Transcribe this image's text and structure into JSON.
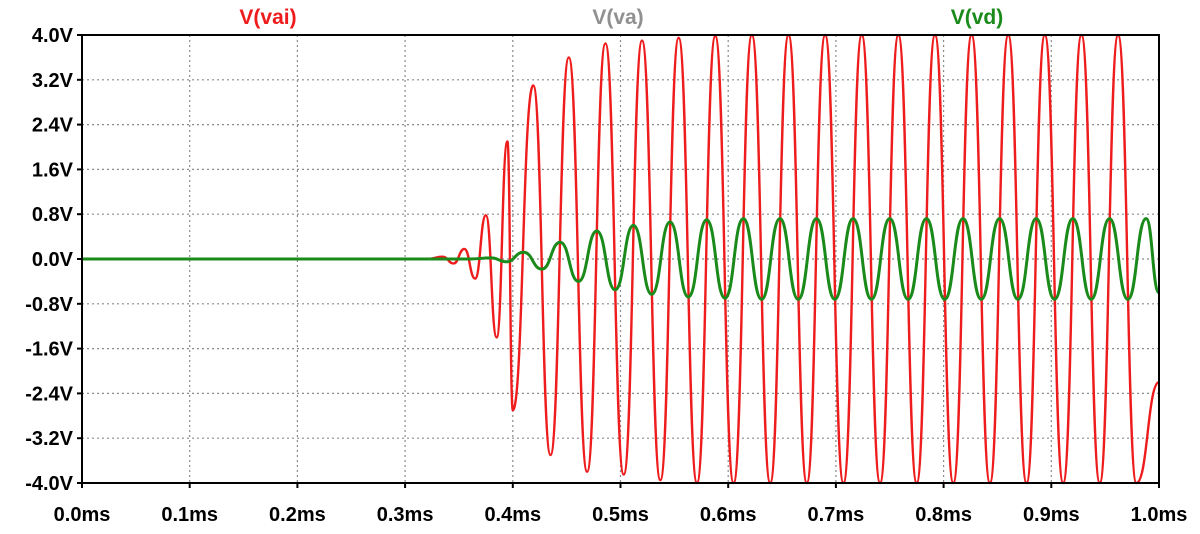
{
  "colors": {
    "background": "#ffffff",
    "grid": "#8a8a8a",
    "axis": "#000000",
    "vai": "#ee1c1c",
    "va": "#909090",
    "vd": "#1a8a1a"
  },
  "chart_data": {
    "type": "line",
    "title": "",
    "xlabel": "",
    "ylabel": "",
    "xlim": [
      0,
      1.0
    ],
    "ylim": [
      -4.0,
      4.0
    ],
    "x_unit": "ms",
    "y_unit": "V",
    "grid": true,
    "grid_style": "dotted",
    "legend_placement": "top",
    "x_ticks": [
      "0.0ms",
      "0.1ms",
      "0.2ms",
      "0.3ms",
      "0.4ms",
      "0.5ms",
      "0.6ms",
      "0.7ms",
      "0.8ms",
      "0.9ms",
      "1.0ms"
    ],
    "y_ticks": [
      "4.0V",
      "3.2V",
      "2.4V",
      "1.6V",
      "0.8V",
      "0.0V",
      "-0.8V",
      "-1.6V",
      "-2.4V",
      "-3.2V",
      "-4.0V"
    ],
    "series": [
      {
        "name": "V(vai)",
        "color": "#ee1c1c",
        "x": [
          0.0,
          0.32,
          0.335,
          0.345,
          0.355,
          0.365,
          0.375,
          0.385,
          0.395,
          0.4,
          0.419,
          0.435,
          0.452,
          0.469,
          0.486,
          0.503,
          0.52,
          0.537,
          0.554,
          0.571,
          0.588,
          0.605,
          0.622,
          0.639,
          0.656,
          0.673,
          0.69,
          0.707,
          0.724,
          0.741,
          0.758,
          0.775,
          0.792,
          0.809,
          0.826,
          0.843,
          0.86,
          0.877,
          0.894,
          0.911,
          0.928,
          0.945,
          0.962,
          0.979,
          1.0
        ],
        "y": [
          0.0,
          0.0,
          0.04,
          -0.08,
          0.18,
          -0.35,
          0.78,
          -1.4,
          2.1,
          -2.7,
          3.1,
          -3.5,
          3.6,
          -3.8,
          3.85,
          -3.85,
          3.9,
          -3.95,
          3.95,
          -4.0,
          3.98,
          -4.0,
          4.0,
          -4.0,
          4.0,
          -4.0,
          4.0,
          -4.0,
          4.0,
          -4.0,
          4.0,
          -4.0,
          4.0,
          -4.0,
          4.0,
          -4.0,
          4.0,
          -4.0,
          4.0,
          -4.0,
          4.0,
          -4.0,
          4.0,
          -4.0,
          -2.2
        ]
      },
      {
        "name": "V(va)",
        "color": "#909090",
        "x": [],
        "y": []
      },
      {
        "name": "V(vd)",
        "color": "#1a8a1a",
        "x": [
          0.0,
          0.36,
          0.38,
          0.394,
          0.41,
          0.427,
          0.444,
          0.461,
          0.478,
          0.495,
          0.512,
          0.529,
          0.546,
          0.563,
          0.58,
          0.597,
          0.614,
          0.631,
          0.648,
          0.665,
          0.682,
          0.699,
          0.716,
          0.733,
          0.75,
          0.767,
          0.784,
          0.801,
          0.818,
          0.835,
          0.852,
          0.869,
          0.886,
          0.903,
          0.92,
          0.937,
          0.954,
          0.971,
          0.988,
          1.0
        ],
        "y": [
          0.0,
          0.0,
          0.02,
          -0.05,
          0.12,
          -0.18,
          0.3,
          -0.4,
          0.5,
          -0.55,
          0.6,
          -0.63,
          0.66,
          -0.68,
          0.7,
          -0.7,
          0.72,
          -0.72,
          0.72,
          -0.72,
          0.72,
          -0.72,
          0.72,
          -0.72,
          0.72,
          -0.72,
          0.72,
          -0.72,
          0.72,
          -0.72,
          0.72,
          -0.72,
          0.72,
          -0.72,
          0.72,
          -0.72,
          0.72,
          -0.72,
          0.72,
          -0.6
        ]
      }
    ]
  }
}
